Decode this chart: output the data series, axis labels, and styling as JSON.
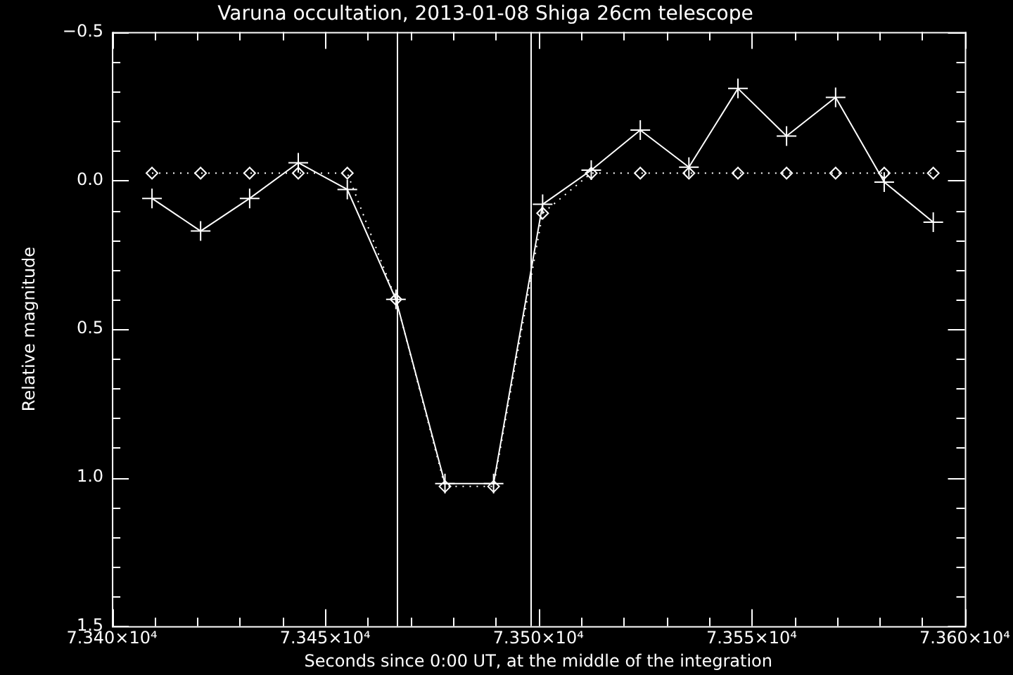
{
  "chart_data": {
    "type": "line",
    "title": "Varuna occultation, 2013-01-08 Shiga 26cm telescope",
    "xlabel": "Seconds since 0:00 UT, at the middle of the integration",
    "ylabel": "Relative magnitude",
    "x": [
      73409.4,
      73420.8,
      73432.3,
      73443.7,
      73455.2,
      73466.6,
      73478.1,
      73489.5,
      73501.0,
      73512.4,
      73523.9,
      73535.3,
      73546.8,
      73558.2,
      73569.7,
      73581.1,
      73592.6
    ],
    "series": [
      {
        "color": "#ffffff",
        "marker": "cross",
        "line_style": "solid",
        "values": [
          0.06,
          0.17,
          0.06,
          -0.06,
          0.03,
          0.4,
          1.02,
          1.02,
          0.08,
          -0.035,
          -0.17,
          -0.045,
          -0.31,
          -0.15,
          -0.28,
          0.005,
          0.14
        ]
      },
      {
        "color": "#ffffff",
        "marker": "diamond",
        "line_style": "dotted",
        "values": [
          -0.025,
          -0.025,
          -0.025,
          -0.025,
          -0.025,
          0.4,
          1.03,
          1.03,
          0.11,
          -0.025,
          -0.025,
          -0.025,
          -0.025,
          -0.025,
          -0.025,
          -0.025,
          -0.025
        ]
      }
    ],
    "xlim": [
      73400,
      73600
    ],
    "xticks": [
      {
        "value": 73400,
        "label": "7.340×10⁴"
      },
      {
        "value": 73410,
        "label": null
      },
      {
        "value": 73420,
        "label": null
      },
      {
        "value": 73430,
        "label": null
      },
      {
        "value": 73440,
        "label": null
      },
      {
        "value": 73450,
        "label": "7.345×10⁴"
      },
      {
        "value": 73460,
        "label": null
      },
      {
        "value": 73470,
        "label": null
      },
      {
        "value": 73480,
        "label": null
      },
      {
        "value": 73490,
        "label": null
      },
      {
        "value": 73500,
        "label": "7.350×10⁴"
      },
      {
        "value": 73510,
        "label": null
      },
      {
        "value": 73520,
        "label": null
      },
      {
        "value": 73530,
        "label": null
      },
      {
        "value": 73540,
        "label": null
      },
      {
        "value": 73550,
        "label": "7.355×10⁴"
      },
      {
        "value": 73560,
        "label": null
      },
      {
        "value": 73570,
        "label": null
      },
      {
        "value": 73580,
        "label": null
      },
      {
        "value": 73590,
        "label": null
      },
      {
        "value": 73600,
        "label": "7.360×10⁴"
      }
    ],
    "ylim": [
      1.5,
      -0.5
    ],
    "yticks": [
      {
        "value": -0.5,
        "label": "−0.5"
      },
      {
        "value": -0.4,
        "label": null
      },
      {
        "value": -0.3,
        "label": null
      },
      {
        "value": -0.2,
        "label": null
      },
      {
        "value": -0.1,
        "label": null
      },
      {
        "value": 0,
        "label": "0.0"
      },
      {
        "value": 0.1,
        "label": null
      },
      {
        "value": 0.2,
        "label": null
      },
      {
        "value": 0.3,
        "label": null
      },
      {
        "value": 0.4,
        "label": null
      },
      {
        "value": 0.5,
        "label": "0.5"
      },
      {
        "value": 0.6,
        "label": null
      },
      {
        "value": 0.7,
        "label": null
      },
      {
        "value": 0.8,
        "label": null
      },
      {
        "value": 0.9,
        "label": null
      },
      {
        "value": 1.0,
        "label": "1.0"
      },
      {
        "value": 1.1,
        "label": null
      },
      {
        "value": 1.2,
        "label": null
      },
      {
        "value": 1.3,
        "label": null
      },
      {
        "value": 1.4,
        "label": null
      },
      {
        "value": 1.5,
        "label": "1.5"
      }
    ],
    "ref_lines": [
      {
        "axis": "x",
        "value": 73466.8
      },
      {
        "axis": "x",
        "value": 73498.0
      }
    ],
    "grid": false,
    "legend": false
  }
}
